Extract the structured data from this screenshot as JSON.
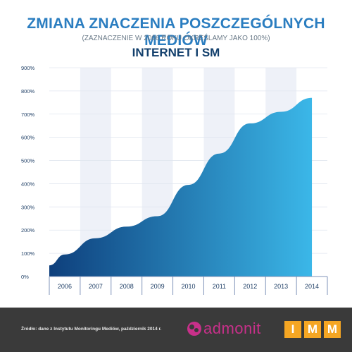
{
  "header": {
    "title": "ZMIANA ZNACZENIA POSZCZEGÓLNYCH MEDIÓW",
    "subtitle": "(ZAZNACZENIE W 2006 ROKU OKREŚLAMY JAKO 100%)"
  },
  "chart_data": {
    "type": "area",
    "title": "INTERNET I SM",
    "xlabel": "",
    "ylabel": "",
    "x": [
      2006,
      2007,
      2008,
      2009,
      2010,
      2011,
      2012,
      2013,
      2014
    ],
    "categories": [
      "2006",
      "2007",
      "2008",
      "2009",
      "2010",
      "2011",
      "2012",
      "2013",
      "2014"
    ],
    "values": [
      95,
      165,
      215,
      260,
      395,
      530,
      660,
      710,
      770
    ],
    "start_value": 48,
    "ylim": [
      0,
      900
    ],
    "yticks": [
      0,
      100,
      200,
      300,
      400,
      500,
      600,
      700,
      800,
      900
    ],
    "ytick_labels": [
      "0%",
      "100%",
      "200%",
      "300%",
      "400%",
      "500%",
      "600%",
      "700%",
      "800%",
      "900%"
    ],
    "grid": true,
    "colors": {
      "area_dark": "#0e3f7c",
      "area_light": "#3bb7e8",
      "band": "#eef1f8",
      "axis": "#7f93b8"
    }
  },
  "footer": {
    "source": "Źródło: dane z Instytutu Monitoringu Mediów, październik 2014 r.",
    "admonit_logo_text": "admonit",
    "imm_letters": [
      "I",
      "M",
      "M"
    ]
  }
}
